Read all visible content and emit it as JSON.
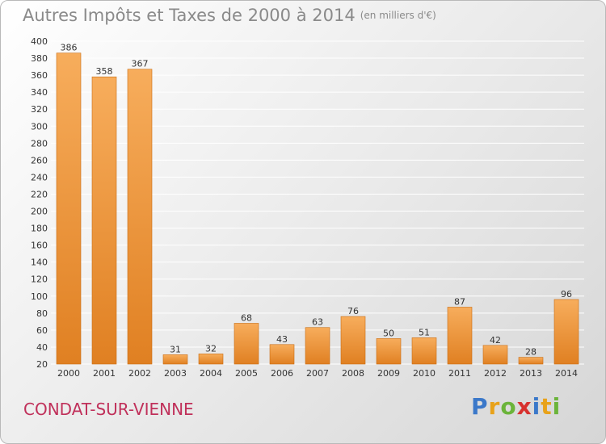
{
  "header": {
    "title": "Autres Impôts et Taxes de 2000 à 2014",
    "unit": "(en milliers d'€)"
  },
  "footer": {
    "place": "CONDAT-SUR-VIENNE",
    "logo": [
      "P",
      "r",
      "o",
      "x",
      "i",
      "t",
      "i"
    ],
    "logo_colors": [
      "#3b78c9",
      "#e8a21a",
      "#6bb43a",
      "#d7312e",
      "#3b78c9",
      "#e8a21a",
      "#6bb43a"
    ]
  },
  "colors": {
    "bar_light": "#f7ad5c",
    "bar_dark": "#e08022",
    "bar_edge": "#c86d14",
    "grid": "#ffffff",
    "title": "#8a8a8a",
    "place": "#c0305a"
  },
  "chart_data": {
    "type": "bar",
    "title": "Autres Impôts et Taxes de 2000 à 2014",
    "subtitle": "(en milliers d'€)",
    "xlabel": "",
    "ylabel": "",
    "ylim": [
      20,
      400
    ],
    "yticks": [
      20,
      40,
      60,
      80,
      100,
      120,
      140,
      160,
      180,
      200,
      220,
      240,
      260,
      280,
      300,
      320,
      340,
      360,
      380,
      400
    ],
    "grid": true,
    "categories": [
      "2000",
      "2001",
      "2002",
      "2003",
      "2004",
      "2005",
      "2006",
      "2007",
      "2008",
      "2009",
      "2010",
      "2011",
      "2012",
      "2013",
      "2014"
    ],
    "values": [
      386,
      358,
      367,
      31,
      32,
      68,
      43,
      63,
      76,
      50,
      51,
      87,
      42,
      28,
      96
    ]
  }
}
